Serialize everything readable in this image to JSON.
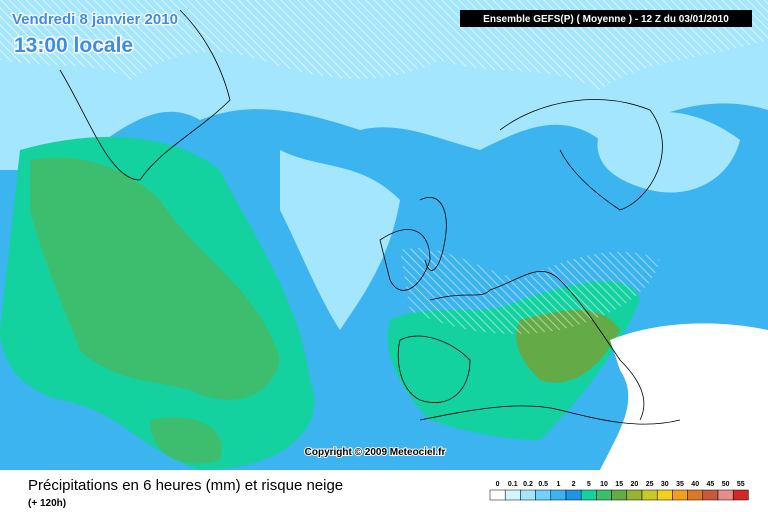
{
  "header": {
    "date": "Vendredi 8 janvier 2010",
    "time": "13:00 locale",
    "model": "Ensemble GEFS(P) ( Moyenne )  - 12 Z du 03/01/2010"
  },
  "copyright": "Copyright © 2009 Meteociel.fr",
  "footer": {
    "title": "Précipitations en 6 heures (mm) et risque neige",
    "subtitle": "(+ 120h)"
  },
  "legend": [
    {
      "label": "0",
      "color": "#ffffff"
    },
    {
      "label": "0.1",
      "color": "#d2f5ff"
    },
    {
      "label": "0.2",
      "color": "#a5e6ff"
    },
    {
      "label": "0.5",
      "color": "#6ed2fa"
    },
    {
      "label": "1",
      "color": "#3cb4f0"
    },
    {
      "label": "2",
      "color": "#1e96e6"
    },
    {
      "label": "5",
      "color": "#14d2a0"
    },
    {
      "label": "10",
      "color": "#3cbe6e"
    },
    {
      "label": "15",
      "color": "#64aa46"
    },
    {
      "label": "20",
      "color": "#96b432"
    },
    {
      "label": "25",
      "color": "#c8c828"
    },
    {
      "label": "30",
      "color": "#f0d21e"
    },
    {
      "label": "35",
      "color": "#f0a01e"
    },
    {
      "label": "40",
      "color": "#dc7828"
    },
    {
      "label": "45",
      "color": "#c85a3c"
    },
    {
      "label": "50",
      "color": "#e68c8c"
    },
    {
      "label": "55",
      "color": "#d22828"
    }
  ]
}
